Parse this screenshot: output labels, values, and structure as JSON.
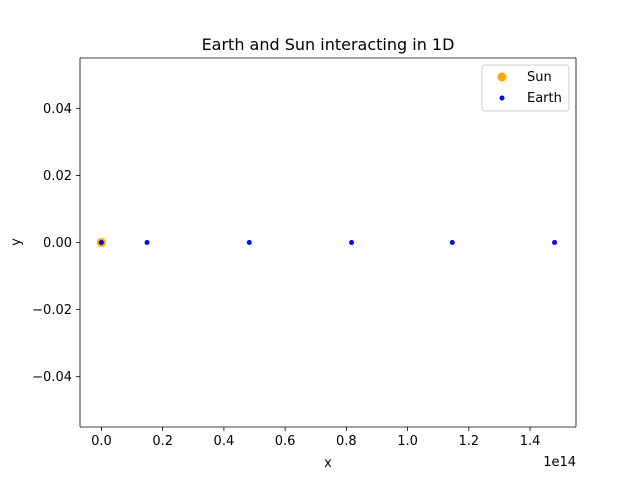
{
  "chart_data": {
    "type": "scatter",
    "title": "Earth and Sun interacting in 1D",
    "xlabel": "x",
    "ylabel": "y",
    "x_offset_text": "1e14",
    "x_scale": 100000000000000.0,
    "xlim": [
      -7000000000000.0,
      155000000000000.0
    ],
    "ylim": [
      -0.055,
      0.055
    ],
    "xticks": [
      0.0,
      20000000000000.0,
      40000000000000.0,
      60000000000000.0,
      80000000000000.0,
      100000000000000.0,
      120000000000000.0,
      140000000000000.0
    ],
    "xtick_labels": [
      "0.0",
      "0.2",
      "0.4",
      "0.6",
      "0.8",
      "1.0",
      "1.2",
      "1.4"
    ],
    "yticks": [
      -0.04,
      -0.02,
      0.0,
      0.02,
      0.04
    ],
    "ytick_labels": [
      "−0.04",
      "−0.02",
      "0.00",
      "0.02",
      "0.04"
    ],
    "grid": false,
    "legend_position": "top-right",
    "series": [
      {
        "name": "Sun",
        "color": "#ffa500",
        "marker_size": "large",
        "points": [
          {
            "x": 0.0,
            "y": 0.0
          }
        ]
      },
      {
        "name": "Earth",
        "color": "#0000ff",
        "marker_size": "small",
        "points": [
          {
            "x": 0.0,
            "y": 0.0
          },
          {
            "x": 14900000000000.0,
            "y": 0.0
          },
          {
            "x": 48300000000000.0,
            "y": 0.0
          },
          {
            "x": 81700000000000.0,
            "y": 0.0
          },
          {
            "x": 114600000000000.0,
            "y": 0.0
          },
          {
            "x": 148000000000000.0,
            "y": 0.0
          }
        ]
      }
    ]
  }
}
